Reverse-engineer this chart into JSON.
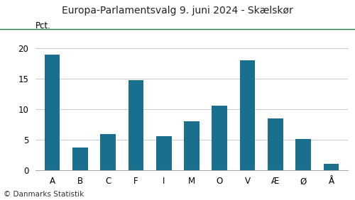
{
  "title": "Europa-Parlamentsvalg 9. juni 2024 - Skælskør",
  "categories": [
    "A",
    "B",
    "C",
    "F",
    "I",
    "M",
    "O",
    "V",
    "Æ",
    "Ø",
    "Å"
  ],
  "values": [
    19.0,
    3.7,
    5.9,
    14.8,
    5.5,
    8.0,
    10.6,
    18.0,
    8.5,
    5.1,
    1.0
  ],
  "bar_color": "#1a6e8e",
  "ylabel": "Pct.",
  "ylim": [
    0,
    22
  ],
  "yticks": [
    0,
    5,
    10,
    15,
    20
  ],
  "footer": "© Danmarks Statistik",
  "title_fontsize": 10,
  "tick_fontsize": 8.5,
  "footer_fontsize": 7.5,
  "ylabel_fontsize": 8.5,
  "title_color": "#222222",
  "top_line_color": "#1a7a3a",
  "grid_color": "#cccccc",
  "background_color": "#ffffff"
}
